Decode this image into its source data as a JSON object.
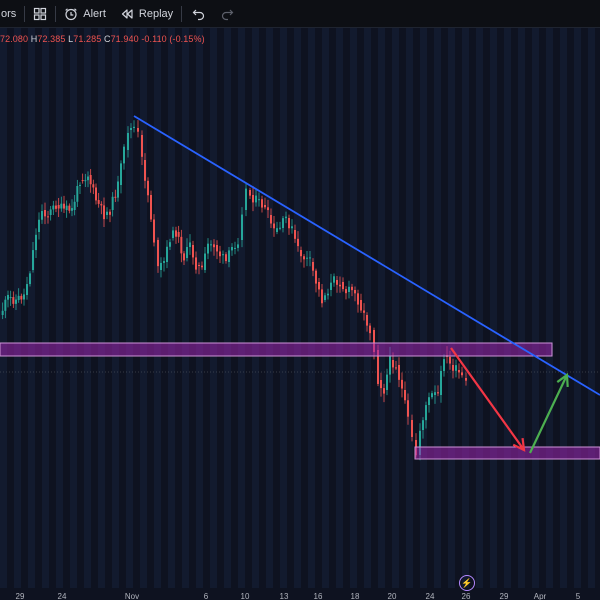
{
  "toolbar": {
    "indicators_partial": "ors",
    "alert_label": "Alert",
    "replay_label": "Replay",
    "icons": [
      "layout-grid-icon",
      "alert-clock-icon",
      "replay-icon",
      "undo-icon",
      "redo-icon"
    ]
  },
  "ohlc": {
    "open_value": "72.080",
    "high_label": "H",
    "high_value": "72.385",
    "low_label": "L",
    "low_value": "71.285",
    "close_label": "C",
    "close_value": "71.940",
    "change": "-0.110 (-0.15%)"
  },
  "chart_data": {
    "type": "candlestick",
    "x_tick_labels": [
      "29",
      "24",
      "Nov",
      "6",
      "10",
      "13",
      "16",
      "18",
      "20",
      "24",
      "26",
      "29",
      "Apr",
      "5"
    ],
    "colors": {
      "up": "#26a69a",
      "down": "#ef5350",
      "background": "#0e1220",
      "band_stripe": "#16203a",
      "trendline": "#2962ff",
      "zone_fill": "#9c27b0",
      "zone_border": "#ce93d8",
      "projection_down": "#f23645",
      "projection_up": "#4caf50"
    },
    "overlays": [
      "descending trendline",
      "resistance zone",
      "support zone",
      "projected down move",
      "projected up move"
    ]
  }
}
